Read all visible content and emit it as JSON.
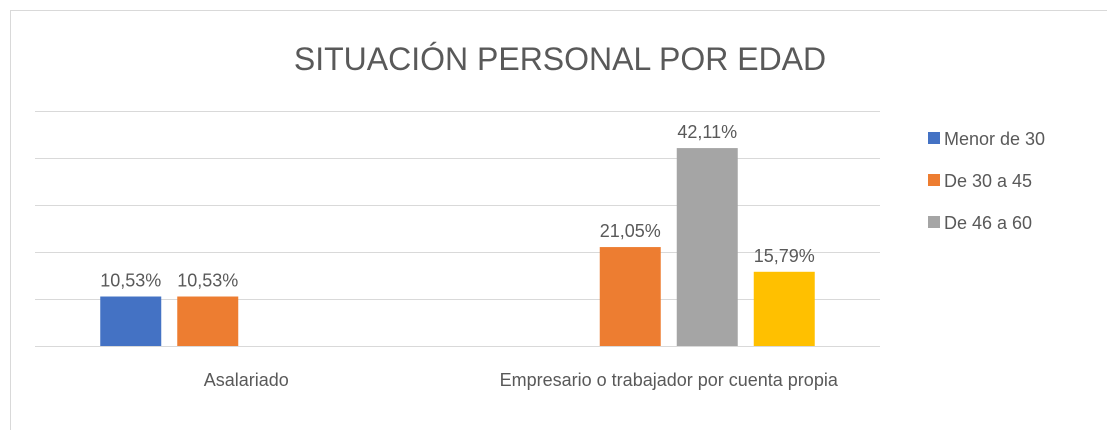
{
  "chart_data": {
    "type": "bar",
    "title": "SITUACIÓN PERSONAL POR EDAD",
    "categories": [
      "Asalariado",
      "Empresario o trabajador por cuenta propia"
    ],
    "series": [
      {
        "name": "Menor de 30",
        "color": "#4472c4",
        "values": [
          10.53,
          null
        ],
        "value_labels": [
          "10,53%",
          null
        ]
      },
      {
        "name": "De 30 a 45",
        "color": "#ed7d31",
        "values": [
          10.53,
          21.05
        ],
        "value_labels": [
          "10,53%",
          "21,05%"
        ]
      },
      {
        "name": "De 46 a 60",
        "color": "#a5a5a5",
        "values": [
          null,
          42.11
        ],
        "value_labels": [
          null,
          "42,11%"
        ]
      },
      {
        "color": "#ffc000",
        "values": [
          null,
          15.79
        ],
        "value_labels": [
          null,
          "15,79%"
        ]
      }
    ],
    "ylim": [
      0,
      50
    ],
    "yticks": [
      0,
      10,
      20,
      30,
      40,
      50
    ],
    "grid": true,
    "legend": "right"
  }
}
